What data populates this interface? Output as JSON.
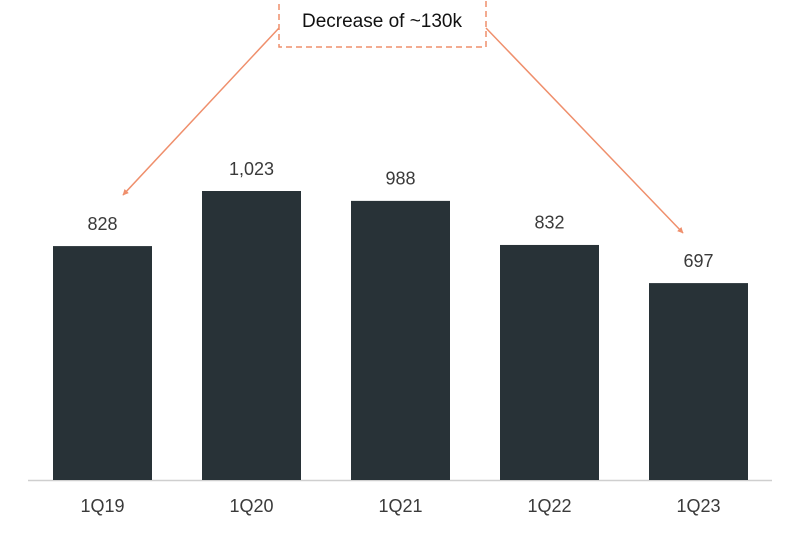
{
  "chart_data": {
    "type": "bar",
    "annotation": "Decrease of ~130k",
    "categories": [
      "1Q19",
      "1Q20",
      "1Q21",
      "1Q22",
      "1Q23"
    ],
    "values": [
      828,
      1023,
      988,
      832,
      697
    ],
    "value_labels": [
      "828",
      "1,023",
      "988",
      "832",
      "697"
    ],
    "color": "#283237"
  }
}
